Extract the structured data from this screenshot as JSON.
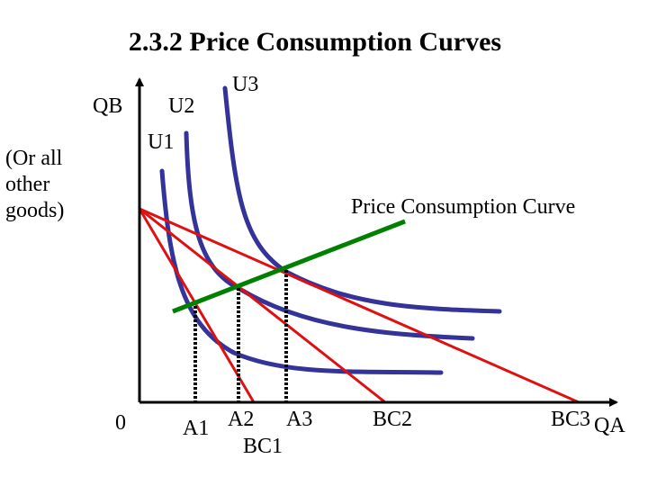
{
  "title": "2.3.2 Price Consumption Curves",
  "axes": {
    "y_label": "QB",
    "y_note": "(Or all other goods)",
    "origin_label": "0",
    "x_label": "QA"
  },
  "curves": {
    "indifference": [
      "U1",
      "U2",
      "U3"
    ],
    "price_consumption_label": "Price Consumption Curve"
  },
  "budget_lines": [
    "BC1",
    "BC2",
    "BC3"
  ],
  "tangency_points": [
    "A1",
    "A2",
    "A3"
  ],
  "colors": {
    "indifference_curve": "#333399",
    "budget_line": "#e01010",
    "price_consumption_curve": "#008000",
    "axis": "#000000",
    "drop_line": "#000000"
  }
}
